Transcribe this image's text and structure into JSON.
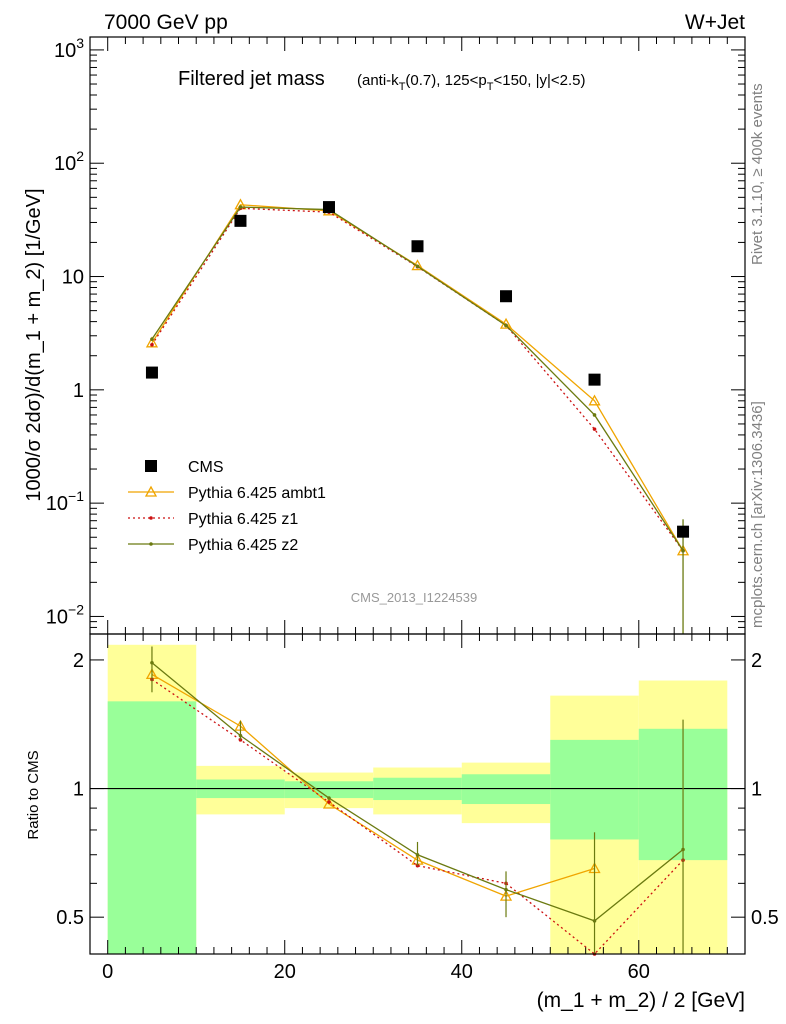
{
  "header": {
    "left": "7000 GeV pp",
    "right": "W+Jet"
  },
  "title_main": "Filtered jet mass",
  "title_sub": "(anti-k_T(0.7), 125<p_T<150, |y|<2.5)",
  "side_label_top": "Rivet 3.1.10, ≥ 400k events",
  "side_label_bottom": "mcplots.cern.ch [arXiv:1306.3436]",
  "watermark": "CMS_2013_I1224539",
  "colors": {
    "cms": "#000000",
    "ambt1": "#f0a500",
    "z1": "#cc1111",
    "z2": "#6b7a10",
    "band_green": "#99ff99",
    "band_yellow": "#ffff99"
  },
  "chart_data": [
    {
      "type": "scatter",
      "panel": "main",
      "ylabel": "1000/σ 2dσ)/d(m_1 + m_2) [1/GeV]",
      "yscale": "log",
      "ylim": [
        0.007,
        1300
      ],
      "xlim": [
        -2,
        72
      ],
      "y_tick_labels": [
        "10^-2",
        "10^-1",
        "1",
        "10",
        "10^2",
        "10^3"
      ],
      "legend_position": "middle-left",
      "x": [
        5,
        15,
        25,
        35,
        45,
        55,
        65
      ],
      "series": [
        {
          "name": "CMS",
          "style": "square-marker",
          "values": [
            1.42,
            31,
            41,
            18.5,
            6.7,
            1.23,
            0.056
          ]
        },
        {
          "name": "Pythia 6.425 ambt1",
          "style": "line-triangle",
          "values": [
            2.6,
            43,
            38,
            12.5,
            3.8,
            0.8,
            0.038
          ]
        },
        {
          "name": "Pythia 6.425 z1",
          "style": "dotted-line",
          "values": [
            2.5,
            40,
            37,
            12.2,
            3.7,
            0.45,
            0.038
          ]
        },
        {
          "name": "Pythia 6.425 z2",
          "style": "line-dot",
          "values": [
            2.8,
            41,
            39,
            12.3,
            3.7,
            0.6,
            0.038
          ]
        }
      ]
    },
    {
      "type": "line",
      "panel": "ratio",
      "xlabel": "(m_1 + m_2) / 2 [GeV]",
      "ylabel": "Ratio to CMS",
      "yscale": "log",
      "ylim": [
        0.41,
        2.3
      ],
      "xlim": [
        -2,
        72
      ],
      "x_ticks": [
        0,
        20,
        40,
        60
      ],
      "y_ticks": [
        0.5,
        1,
        2
      ],
      "reference_line": 1,
      "x": [
        5,
        15,
        25,
        35,
        45,
        55,
        65
      ],
      "bands": {
        "edges": [
          0,
          10,
          20,
          30,
          40,
          50,
          60,
          70
        ],
        "green": [
          [
            0.41,
            1.6
          ],
          [
            0.95,
            1.05
          ],
          [
            0.95,
            1.04
          ],
          [
            0.94,
            1.06
          ],
          [
            0.92,
            1.08
          ],
          [
            0.76,
            1.3
          ],
          [
            0.68,
            1.38
          ]
        ],
        "yellow": [
          [
            0.41,
            2.17
          ],
          [
            0.87,
            1.13
          ],
          [
            0.9,
            1.09
          ],
          [
            0.87,
            1.12
          ],
          [
            0.83,
            1.15
          ],
          [
            0.41,
            1.65
          ],
          [
            0.41,
            1.79
          ]
        ]
      },
      "series": [
        {
          "name": "Pythia 6.425 ambt1",
          "values": [
            1.85,
            1.4,
            0.92,
            0.68,
            0.56,
            0.65,
            null
          ]
        },
        {
          "name": "Pythia 6.425 z1",
          "values": [
            1.8,
            1.3,
            0.93,
            0.66,
            0.6,
            0.37,
            0.68
          ]
        },
        {
          "name": "Pythia 6.425 z2",
          "values": [
            1.97,
            1.33,
            0.95,
            0.7,
            0.58,
            0.49,
            0.72
          ]
        }
      ]
    }
  ]
}
